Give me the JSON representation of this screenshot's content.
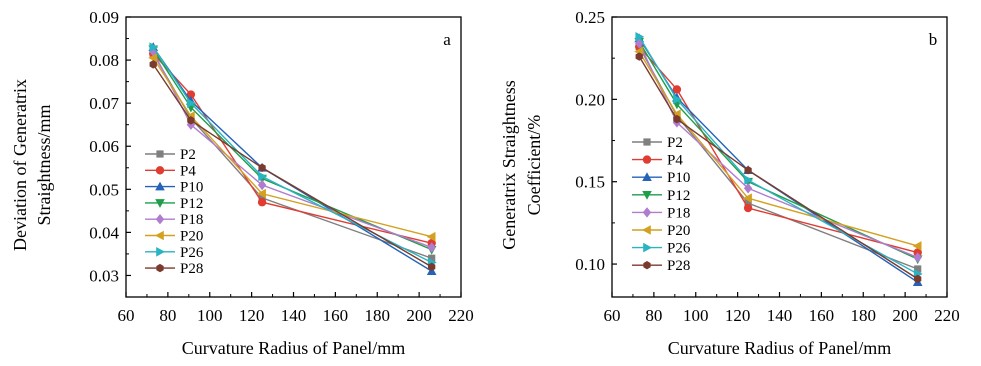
{
  "chart_data": [
    {
      "type": "line",
      "annotation": "a",
      "xlabel": "Curvature Radius of Panel/mm",
      "ylabel_lines": [
        "Deviation of Generatrix",
        "Straightness/mm"
      ],
      "xlim": [
        60,
        220
      ],
      "ylim": [
        0.025,
        0.09
      ],
      "xticks": [
        60,
        80,
        100,
        120,
        140,
        160,
        180,
        200,
        220
      ],
      "yticks": [
        0.03,
        0.04,
        0.05,
        0.06,
        0.07,
        0.08,
        0.09
      ],
      "ytick_labels": [
        "0.03",
        "0.04",
        "0.05",
        "0.06",
        "0.07",
        "0.08",
        "0.09"
      ],
      "x": [
        73,
        91,
        125,
        206
      ],
      "legend_position": "left",
      "series": [
        {
          "name": "P2",
          "color": "#7f7f7f",
          "marker": "square",
          "values": [
            0.0815,
            0.0665,
            0.048,
            0.034
          ]
        },
        {
          "name": "P4",
          "color": "#e03c31",
          "marker": "circle",
          "values": [
            0.0815,
            0.072,
            0.047,
            0.0375
          ]
        },
        {
          "name": "P10",
          "color": "#2463b8",
          "marker": "triangle-up",
          "values": [
            0.083,
            0.0705,
            0.055,
            0.031
          ]
        },
        {
          "name": "P12",
          "color": "#1f9e4a",
          "marker": "triangle-down",
          "values": [
            0.0825,
            0.069,
            0.0525,
            0.036
          ]
        },
        {
          "name": "P18",
          "color": "#b07ccf",
          "marker": "diamond",
          "values": [
            0.082,
            0.065,
            0.051,
            0.0365
          ]
        },
        {
          "name": "P20",
          "color": "#d4a020",
          "marker": "triangle-left",
          "values": [
            0.0805,
            0.067,
            0.049,
            0.039
          ]
        },
        {
          "name": "P26",
          "color": "#2ab3c2",
          "marker": "triangle-right",
          "values": [
            0.083,
            0.07,
            0.053,
            0.033
          ]
        },
        {
          "name": "P28",
          "color": "#7a3b2e",
          "marker": "hexagon",
          "values": [
            0.079,
            0.066,
            0.055,
            0.032
          ]
        }
      ]
    },
    {
      "type": "line",
      "annotation": "b",
      "xlabel": "Curvature Radius of Panel/mm",
      "ylabel_lines": [
        "Generatrix Straightness",
        "Coefficient/%"
      ],
      "xlim": [
        60,
        220
      ],
      "ylim": [
        0.08,
        0.25
      ],
      "xticks": [
        60,
        80,
        100,
        120,
        140,
        160,
        180,
        200,
        220
      ],
      "yticks": [
        0.1,
        0.15,
        0.2,
        0.25
      ],
      "ytick_labels": [
        "0.10",
        "0.15",
        "0.20",
        "0.25"
      ],
      "x": [
        73,
        91,
        125,
        206
      ],
      "legend_position": "left",
      "series": [
        {
          "name": "P2",
          "color": "#7f7f7f",
          "marker": "square",
          "values": [
            0.232,
            0.19,
            0.137,
            0.097
          ]
        },
        {
          "name": "P4",
          "color": "#e03c31",
          "marker": "circle",
          "values": [
            0.232,
            0.206,
            0.134,
            0.107
          ]
        },
        {
          "name": "P10",
          "color": "#2463b8",
          "marker": "triangle-up",
          "values": [
            0.237,
            0.201,
            0.157,
            0.089
          ]
        },
        {
          "name": "P12",
          "color": "#1f9e4a",
          "marker": "triangle-down",
          "values": [
            0.235,
            0.197,
            0.15,
            0.103
          ]
        },
        {
          "name": "P18",
          "color": "#b07ccf",
          "marker": "diamond",
          "values": [
            0.234,
            0.186,
            0.146,
            0.104
          ]
        },
        {
          "name": "P20",
          "color": "#d4a020",
          "marker": "triangle-left",
          "values": [
            0.229,
            0.191,
            0.14,
            0.111
          ]
        },
        {
          "name": "P26",
          "color": "#2ab3c2",
          "marker": "triangle-right",
          "values": [
            0.238,
            0.2,
            0.151,
            0.094
          ]
        },
        {
          "name": "P28",
          "color": "#7a3b2e",
          "marker": "hexagon",
          "values": [
            0.226,
            0.188,
            0.157,
            0.091
          ]
        }
      ]
    }
  ]
}
